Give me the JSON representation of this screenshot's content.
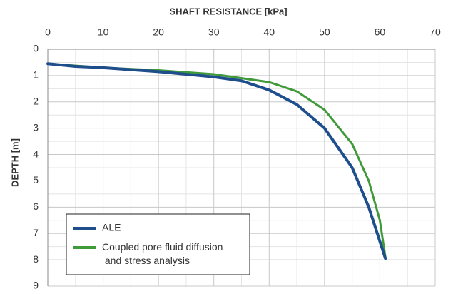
{
  "chart_data": {
    "type": "line",
    "x_label": "SHAFT RESISTANCE [kPa]",
    "y_label": "DEPTH [m]",
    "xlim": [
      0,
      70
    ],
    "xticks": [
      0,
      10,
      20,
      30,
      40,
      50,
      60,
      70
    ],
    "ylim": [
      9,
      0
    ],
    "yticks": [
      0,
      1,
      2,
      3,
      4,
      5,
      6,
      7,
      8,
      9
    ],
    "x_axis_position": "top",
    "grid": true,
    "legend": "lower left",
    "series": [
      {
        "name": "ALE",
        "color": "#1f4e8c",
        "x": [
          0,
          5,
          10,
          20,
          30,
          35,
          40,
          45,
          50,
          55,
          58,
          60,
          61
        ],
        "values": [
          0.55,
          0.65,
          0.7,
          0.85,
          1.05,
          1.2,
          1.55,
          2.1,
          3.0,
          4.5,
          6.0,
          7.3,
          7.95
        ]
      },
      {
        "name": "Coupled pore fluid diffusion and stress analysis",
        "color": "#3f9a3a",
        "x": [
          0,
          10,
          20,
          30,
          40,
          45,
          50,
          55,
          58,
          60,
          61
        ],
        "values": [
          0.55,
          0.7,
          0.8,
          0.95,
          1.25,
          1.6,
          2.3,
          3.6,
          5.0,
          6.5,
          7.9
        ]
      }
    ]
  }
}
